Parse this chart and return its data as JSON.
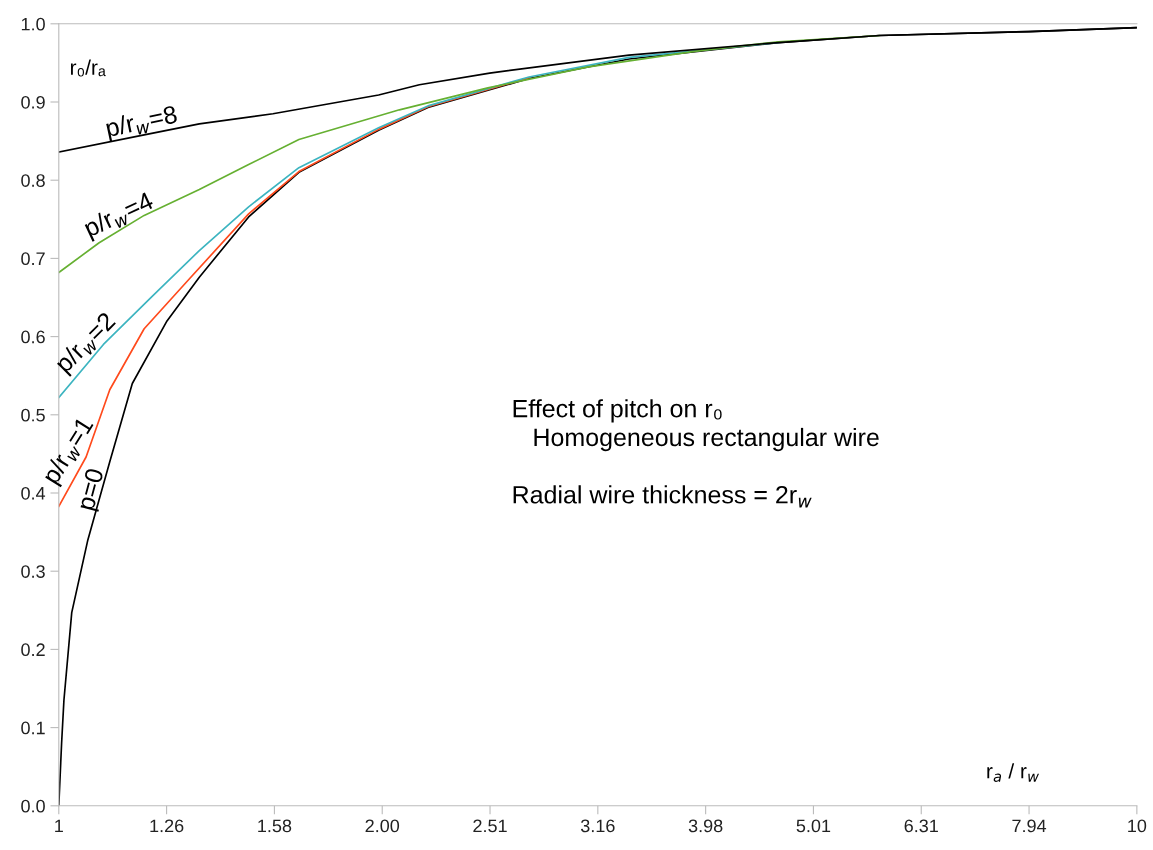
{
  "chart_data": {
    "type": "line",
    "xlabel": "r$_{a}$ / r$_{w}$",
    "ylabel": "r₀/rₐ",
    "log": "x",
    "grid": false,
    "legend": false,
    "marker": "none",
    "line_style": "solid",
    "xlim": [
      1,
      10
    ],
    "xticks": [
      1,
      {
        "value": 1.2589,
        "label": "1.26"
      },
      {
        "value": 1.5849,
        "label": "1.58"
      },
      {
        "value": 1.9953,
        "label": "2.00"
      },
      {
        "value": 2.5119,
        "label": "2.51"
      },
      {
        "value": 3.1623,
        "label": "3.16"
      },
      {
        "value": 3.9811,
        "label": "3.98"
      },
      {
        "value": 5.0119,
        "label": "5.01"
      },
      {
        "value": 6.3096,
        "label": "6.31"
      },
      {
        "value": 7.9433,
        "label": "7.94"
      },
      10
    ],
    "ylim": [
      0,
      1
    ],
    "yticks": [
      {
        "value": 0,
        "label": "0.0"
      },
      0.1,
      0.2,
      0.3,
      0.4,
      0.5,
      0.6,
      0.7,
      0.8,
      0.9,
      {
        "value": 1,
        "label": "1.0"
      }
    ],
    "series": [
      {
        "color": "#000000",
        "x": [
          1,
          1.006,
          1.011,
          1.028,
          1.064,
          1.115,
          1.17,
          1.26,
          1.35,
          1.5,
          1.67,
          1.98,
          2.2,
          2.73,
          3.38,
          4.65,
          5.77,
          7.94,
          10
        ],
        "values": [
          0,
          0.08,
          0.135,
          0.247,
          0.34,
          0.44,
          0.54,
          0.62,
          0.676,
          0.753,
          0.81,
          0.864,
          0.893,
          0.93,
          0.955,
          0.976,
          0.985,
          0.99,
          0.995
        ]
      },
      {
        "color": "#ff4a1c",
        "x": [
          1,
          1.06,
          1.115,
          1.2,
          1.32,
          1.5,
          1.67,
          1.98,
          2.2,
          2.73
        ],
        "values": [
          0.383,
          0.446,
          0.532,
          0.61,
          0.673,
          0.757,
          0.811,
          0.865,
          0.894,
          0.931
        ]
      },
      {
        "color": "#3cb4c0",
        "x": [
          1,
          1.1,
          1.22,
          1.35,
          1.5,
          1.67,
          1.98,
          2.2,
          2.73,
          3.38,
          4.65
        ],
        "values": [
          0.522,
          0.59,
          0.651,
          0.71,
          0.766,
          0.816,
          0.867,
          0.895,
          0.932,
          0.957,
          0.976
        ]
      },
      {
        "color": "#66b032",
        "x": [
          1,
          1.09,
          1.2,
          1.35,
          1.5,
          1.67,
          2.07,
          2.5,
          3.1,
          3.9,
          4.65,
          5.77
        ],
        "values": [
          0.682,
          0.72,
          0.755,
          0.788,
          0.82,
          0.852,
          0.89,
          0.918,
          0.945,
          0.965,
          0.977,
          0.985
        ]
      },
      {
        "color": "#000000",
        "x": [
          1,
          1.2,
          1.35,
          1.58,
          1.98,
          2.16,
          2.51,
          3.38,
          4.65,
          5.77,
          7.94,
          10
        ],
        "values": [
          0.836,
          0.858,
          0.872,
          0.885,
          0.909,
          0.922,
          0.937,
          0.96,
          0.976,
          0.985,
          0.99,
          0.995
        ]
      }
    ],
    "annotations": [
      {
        "text": "p/r$_{w}$=8",
        "x": 1.2,
        "y": 0.858
      },
      {
        "text": "p/r$_{w}$=4",
        "x": 1.15,
        "y": 0.74
      },
      {
        "text": "p/r$_{w}$=2",
        "x": 1.08,
        "y": 0.58
      },
      {
        "text": "p/r$_{w}$=1",
        "x": 1.045,
        "y": 0.445
      },
      {
        "text": "p=0",
        "x": 1.1,
        "y": 0.4
      },
      "Effect of pitch on r₀\n   Homogeneous rectangular wire\n\nRadial wire thickness = 2r$_{w}$"
    ]
  }
}
